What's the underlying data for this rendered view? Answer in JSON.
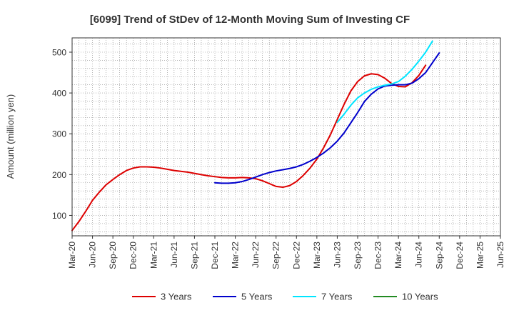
{
  "chart_data": {
    "type": "line",
    "title": "[6099]  Trend of StDev of 12-Month Moving Sum of Investing CF",
    "xlabel": "",
    "ylabel": "Amount (million yen)",
    "ylim": [
      50,
      535
    ],
    "yticks": [
      100,
      200,
      300,
      400,
      500
    ],
    "grid": true,
    "legend_position": "bottom",
    "x_tick_labels": [
      "Mar-20",
      "Jun-20",
      "Sep-20",
      "Dec-20",
      "Mar-21",
      "Jun-21",
      "Sep-21",
      "Dec-21",
      "Mar-22",
      "Jun-22",
      "Sep-22",
      "Dec-22",
      "Mar-23",
      "Jun-23",
      "Sep-23",
      "Dec-23",
      "Mar-24",
      "Jun-24",
      "Sep-24",
      "Dec-24",
      "Mar-25",
      "Jun-25"
    ],
    "series": [
      {
        "name": "3 Years",
        "color": "#dd0000",
        "start_index": 0,
        "values": [
          63,
          85,
          110,
          137,
          157,
          175,
          188,
          200,
          210,
          216,
          219,
          219,
          218,
          216,
          213,
          210,
          208,
          206,
          203,
          200,
          197,
          195,
          193,
          192,
          192,
          193,
          192,
          190,
          185,
          178,
          171,
          169,
          173,
          183,
          198,
          216,
          238,
          266,
          298,
          335,
          372,
          405,
          428,
          442,
          447,
          445,
          436,
          423,
          416,
          415,
          425,
          443,
          468
        ]
      },
      {
        "name": "5 Years",
        "color": "#0000cc",
        "start_index": 21,
        "values": [
          180,
          179,
          179,
          180,
          183,
          188,
          194,
          200,
          205,
          209,
          212,
          215,
          219,
          225,
          233,
          242,
          253,
          266,
          282,
          302,
          327,
          352,
          379,
          397,
          410,
          417,
          419,
          420,
          420,
          424,
          435,
          450,
          474,
          498
        ]
      },
      {
        "name": "7 Years",
        "color": "#00e5ff",
        "start_index": 39,
        "values": [
          328,
          348,
          370,
          388,
          400,
          409,
          415,
          419,
          422,
          428,
          441,
          458,
          478,
          500,
          527
        ]
      },
      {
        "name": "10 Years",
        "color": "#228b22",
        "start_index": 0,
        "values": []
      }
    ]
  }
}
